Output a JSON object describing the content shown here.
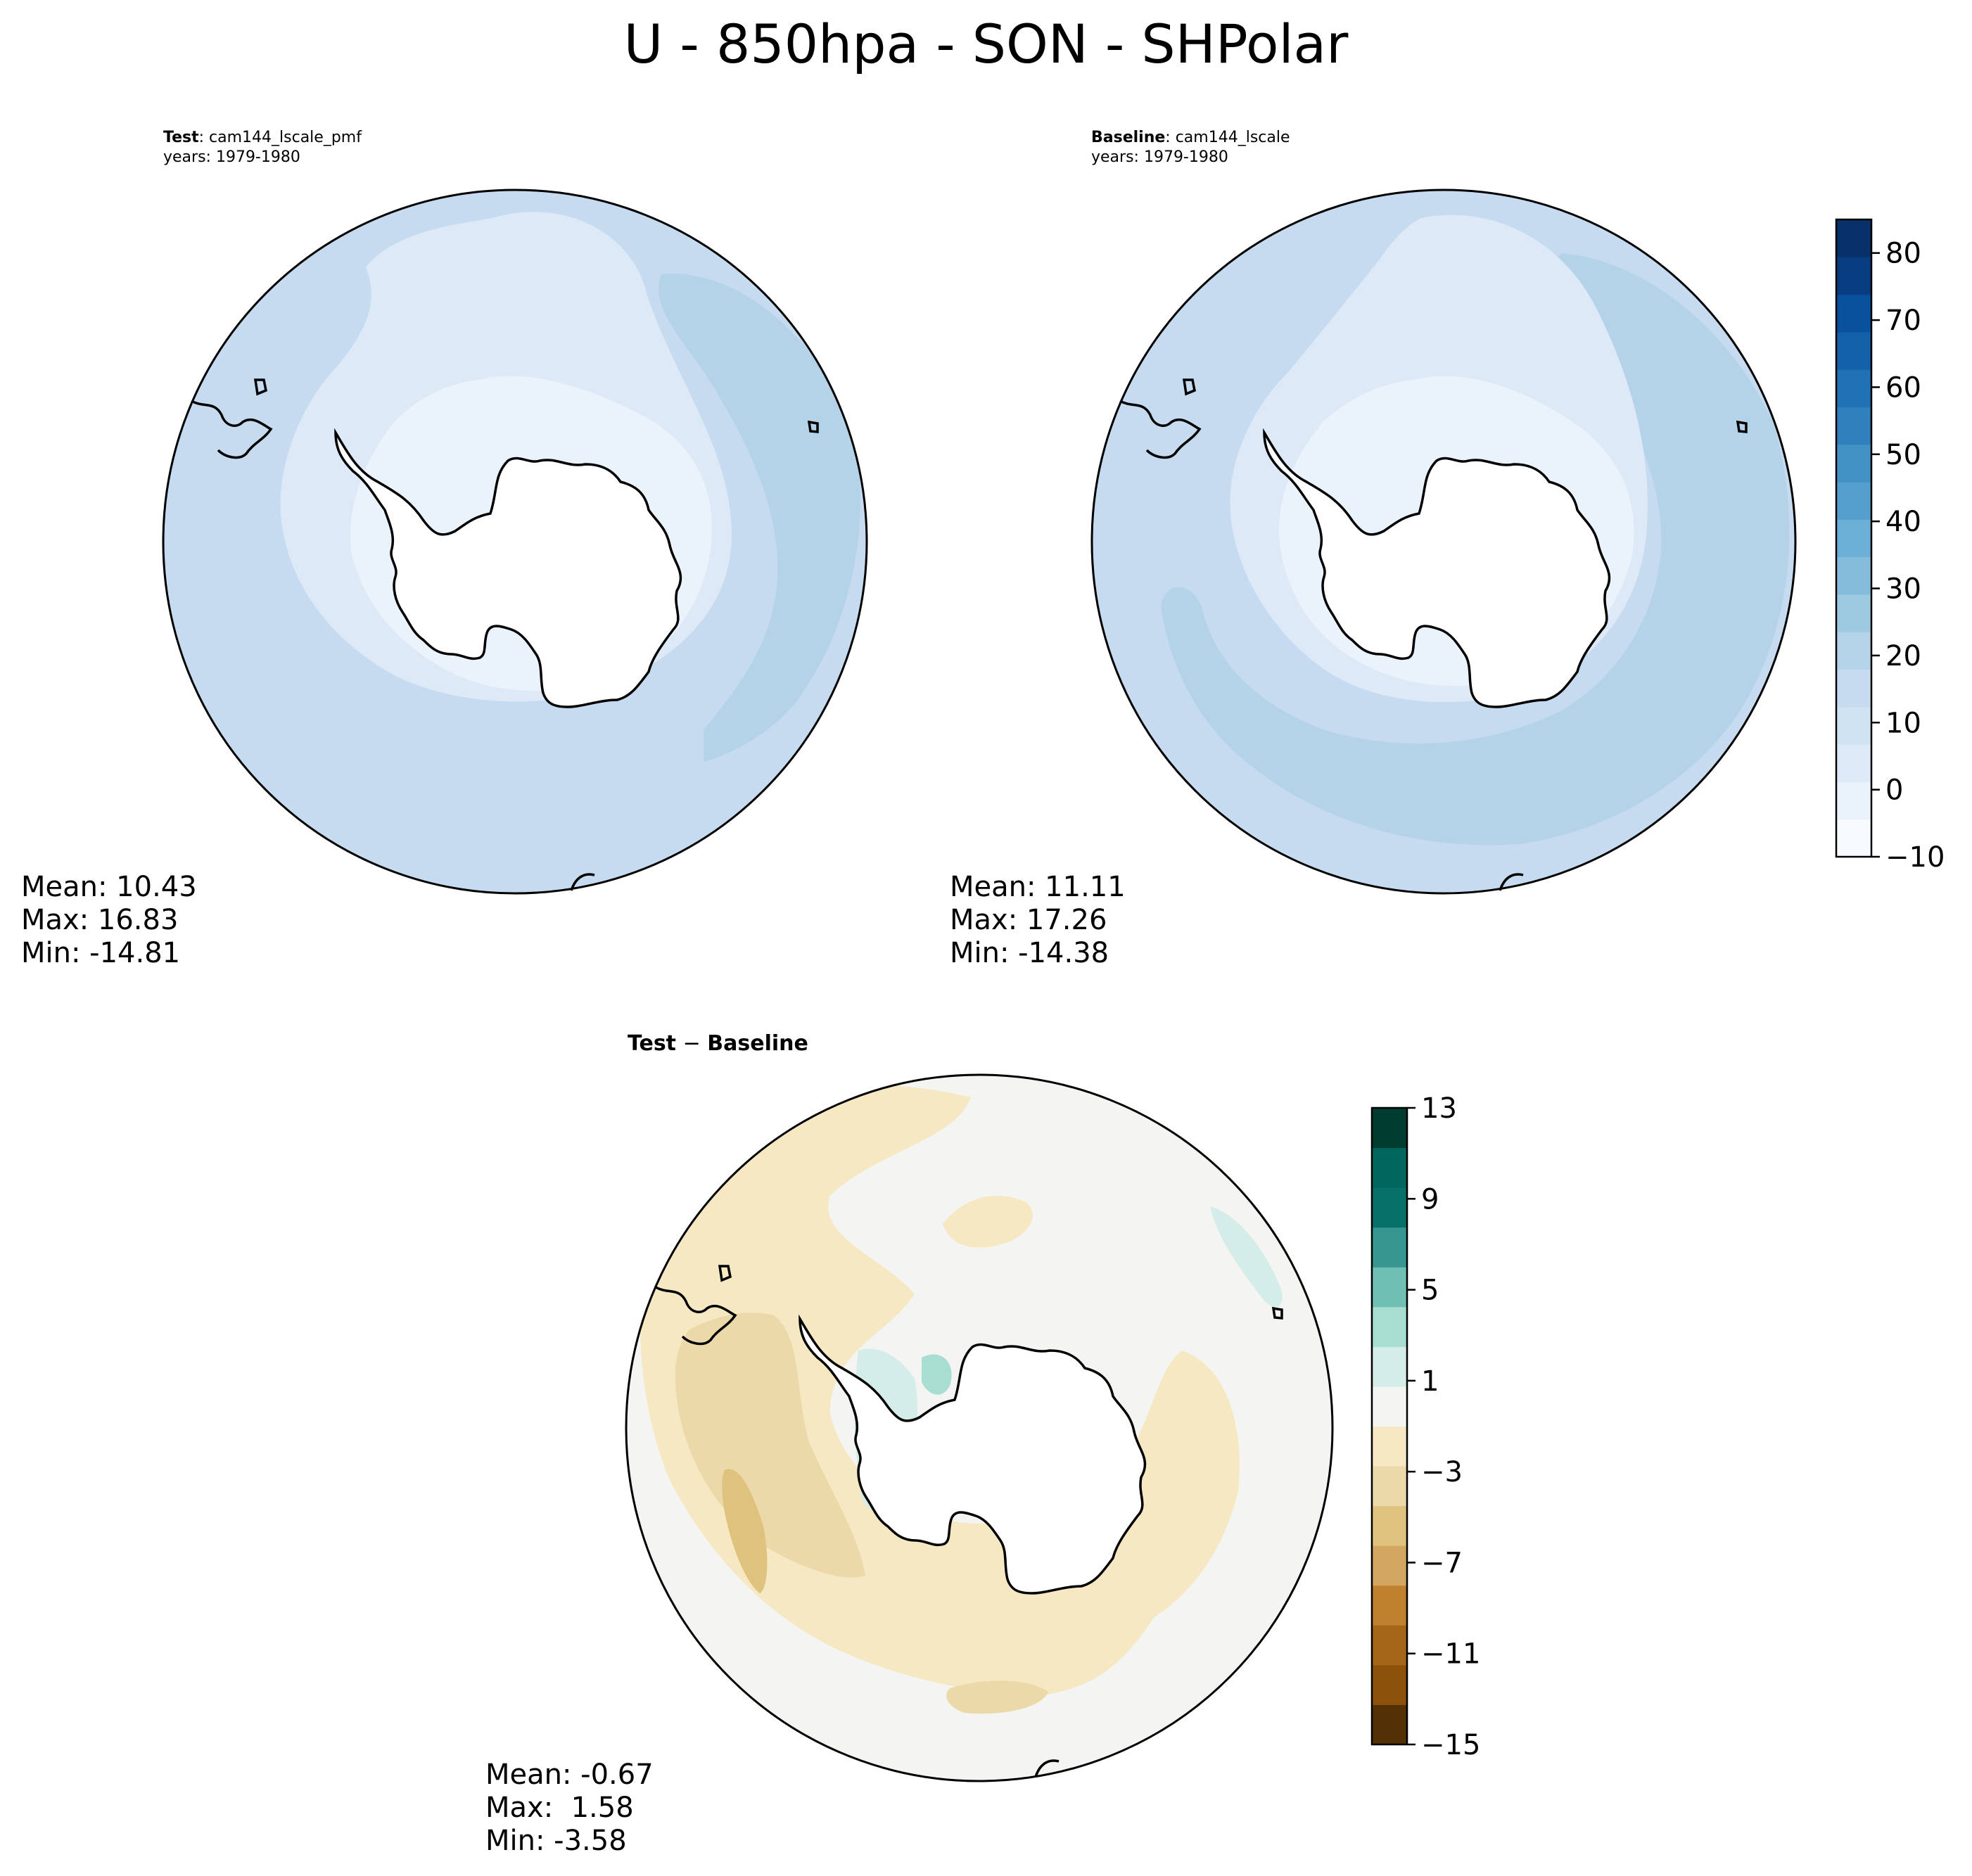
{
  "figure": {
    "title": "U - 850hpa - SON - SHPolar"
  },
  "panels": {
    "test": {
      "label": "Test",
      "case": ": cam144_lscale_pmf",
      "years": "years: 1979-1980",
      "mean": "Mean: 10.43",
      "max": "Max: 16.83",
      "min": "Min: -14.81"
    },
    "baseline": {
      "label": "Baseline",
      "case": ": cam144_lscale",
      "years": "years: 1979-1980",
      "mean": "Mean: 11.11",
      "max": "Max: 17.26",
      "min": "Min: -14.38"
    },
    "diff": {
      "title_a": "Test",
      "title_sep": " − ",
      "title_b": "Baseline",
      "mean": "Mean: -0.67",
      "max": "Max:  1.58",
      "min": "Min: -3.58"
    }
  },
  "colorbars": {
    "field": {
      "ticks": [
        "80",
        "70",
        "60",
        "50",
        "40",
        "30",
        "20",
        "10",
        "0",
        "−10"
      ],
      "colors": [
        "#f7fbff",
        "#eaf3fb",
        "#dde9f7",
        "#d0e3f3",
        "#c6dbef",
        "#b4d3e9",
        "#9ecae1",
        "#85bcdc",
        "#6baed6",
        "#539ecd",
        "#4292c6",
        "#3080bd",
        "#2171b5",
        "#1361a9",
        "#08519c",
        "#083e81",
        "#08306b"
      ],
      "range": [
        -10,
        85
      ]
    },
    "diff": {
      "ticks": [
        "13",
        "9",
        "5",
        "1",
        "−3",
        "−7",
        "−11",
        "−15"
      ],
      "colors": [
        "#543005",
        "#8c510a",
        "#a6661a",
        "#bf812d",
        "#d2a762",
        "#dfc27d",
        "#ecd9a9",
        "#f6e8c3",
        "#f4f5f3",
        "#d4ede8",
        "#a8ddd2",
        "#6fc0b2",
        "#35978f",
        "#077068",
        "#01665e",
        "#003c30"
      ],
      "range": [
        -15,
        13
      ]
    }
  },
  "map_colors": {
    "test_levels": [
      "#ffffff",
      "#eaf3fb",
      "#dde9f7",
      "#c6dbef",
      "#b4d3e9"
    ],
    "diff_levels": [
      "#ffffff",
      "#f4f5f3",
      "#f6e8c3",
      "#ecd9a9",
      "#dfc27d",
      "#d4ede8",
      "#a8ddd2"
    ],
    "land": "#ffffff",
    "coast": "#000000"
  }
}
